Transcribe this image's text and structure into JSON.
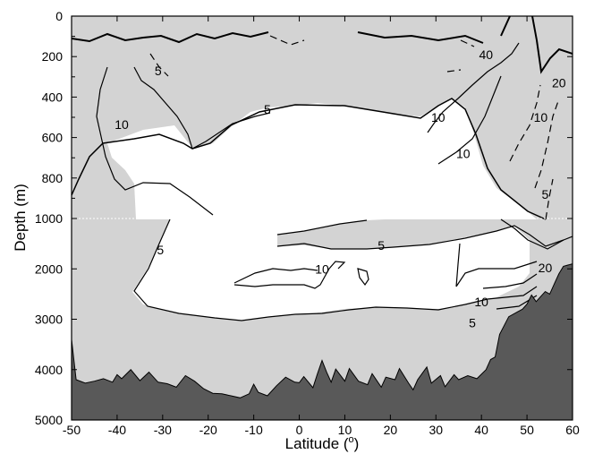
{
  "chart_data": {
    "type": "contour",
    "xlabel": "Latitude (",
    "xlabel_degree": "o",
    "xlabel_close": ")",
    "ylabel": "Depth (m)",
    "xlim": [
      -50,
      60
    ],
    "x_ticks": [
      -50,
      -40,
      -30,
      -20,
      -10,
      0,
      10,
      20,
      30,
      40,
      50,
      60
    ],
    "y_ticks_upper": [
      0,
      200,
      400,
      600,
      800,
      1000
    ],
    "y_ticks_lower": [
      1000,
      2000,
      3000,
      4000,
      5000
    ],
    "y_axis_break_at": 1000,
    "ylim_upper": [
      0,
      1000
    ],
    "ylim_lower": [
      1000,
      5000
    ],
    "colors": {
      "shaded": "#d3d3d3",
      "unshaded": "#ffffff",
      "bathymetry": "#595959",
      "contour": "#000000"
    },
    "contour_labels": [
      {
        "text": "5",
        "lat": -31,
        "depth": 270
      },
      {
        "text": "10",
        "lat": -39,
        "depth": 535
      },
      {
        "text": "5",
        "lat": -7,
        "depth": 460
      },
      {
        "text": "10",
        "lat": 30.5,
        "depth": 500
      },
      {
        "text": "10",
        "lat": 36,
        "depth": 680
      },
      {
        "text": "40",
        "lat": 41,
        "depth": 190
      },
      {
        "text": "10",
        "lat": 53,
        "depth": 500
      },
      {
        "text": "5",
        "lat": 54,
        "depth": 880
      },
      {
        "text": "20",
        "lat": 57,
        "depth": 330
      },
      {
        "text": "5",
        "lat": -30.5,
        "depth": 1620
      },
      {
        "text": "5",
        "lat": 18,
        "depth": 1530
      },
      {
        "text": "10",
        "lat": 5,
        "depth": 2000
      },
      {
        "text": "10",
        "lat": 40,
        "depth": 2650
      },
      {
        "text": "5",
        "lat": 38,
        "depth": 3070
      },
      {
        "text": "20",
        "lat": 54,
        "depth": 1980
      }
    ],
    "bathymetry_depth": [
      [
        -50,
        3400
      ],
      [
        -49,
        4200
      ],
      [
        -47,
        4270
      ],
      [
        -45,
        4230
      ],
      [
        -43,
        4180
      ],
      [
        -41,
        4250
      ],
      [
        -40,
        4100
      ],
      [
        -39,
        4180
      ],
      [
        -37,
        4000
      ],
      [
        -35,
        4220
      ],
      [
        -33,
        4050
      ],
      [
        -31,
        4250
      ],
      [
        -29,
        4280
      ],
      [
        -27,
        4350
      ],
      [
        -25,
        4120
      ],
      [
        -23,
        4230
      ],
      [
        -21,
        4380
      ],
      [
        -19,
        4470
      ],
      [
        -17,
        4480
      ],
      [
        -15,
        4520
      ],
      [
        -13,
        4560
      ],
      [
        -11,
        4480
      ],
      [
        -10,
        4290
      ],
      [
        -9,
        4450
      ],
      [
        -7,
        4520
      ],
      [
        -5,
        4320
      ],
      [
        -3,
        4150
      ],
      [
        -1,
        4250
      ],
      [
        0,
        4260
      ],
      [
        1,
        4140
      ],
      [
        3,
        4360
      ],
      [
        4,
        4080
      ],
      [
        5,
        3820
      ],
      [
        6,
        4050
      ],
      [
        7,
        4250
      ],
      [
        8,
        3990
      ],
      [
        10,
        4230
      ],
      [
        11,
        3980
      ],
      [
        13,
        4230
      ],
      [
        15,
        4300
      ],
      [
        16,
        4080
      ],
      [
        18,
        4350
      ],
      [
        19,
        4150
      ],
      [
        21,
        4200
      ],
      [
        22,
        3980
      ],
      [
        24,
        4270
      ],
      [
        25,
        4400
      ],
      [
        26,
        4200
      ],
      [
        28,
        3950
      ],
      [
        29,
        4270
      ],
      [
        31,
        4120
      ],
      [
        32,
        4340
      ],
      [
        34,
        4100
      ],
      [
        35,
        4200
      ],
      [
        37,
        4120
      ],
      [
        39,
        4180
      ],
      [
        41,
        4000
      ],
      [
        42,
        3800
      ],
      [
        43,
        3750
      ],
      [
        44,
        3300
      ],
      [
        46,
        2950
      ],
      [
        48,
        2850
      ],
      [
        49,
        2800
      ],
      [
        50,
        2700
      ],
      [
        51,
        2520
      ],
      [
        52,
        2650
      ],
      [
        53,
        2550
      ],
      [
        54,
        2450
      ],
      [
        55,
        2500
      ],
      [
        56,
        2300
      ],
      [
        57,
        2100
      ],
      [
        58,
        1950
      ],
      [
        60,
        1900
      ]
    ]
  }
}
